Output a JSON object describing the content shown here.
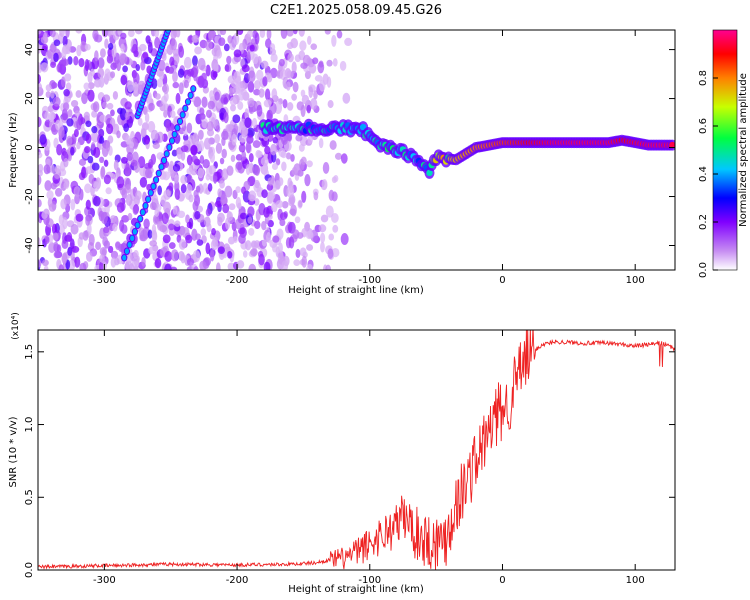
{
  "chart_data": [
    {
      "type": "heatmap",
      "title": "C2E1.2025.058.09.45.G26",
      "xlabel": "Height of straight line (km)",
      "ylabel": "Frequency (Hz)",
      "xlim": [
        -350,
        130
      ],
      "ylim": [
        -50,
        48
      ],
      "xticks": [
        -300,
        -200,
        -100,
        0,
        100
      ],
      "yticks": [
        -40,
        -20,
        0,
        20,
        40
      ],
      "colorbar": {
        "label": "Normalized spectral amplitude",
        "range": [
          0,
          1
        ],
        "ticks": [
          "0.0",
          "0.2",
          "0.4",
          "0.6",
          "0.8"
        ],
        "colormap": [
          "#ffffff",
          "#a020f0",
          "#0000ff",
          "#00ffff",
          "#00ff00",
          "#ffff00",
          "#ff0000",
          "#ff00aa"
        ]
      },
      "features": {
        "main_track": [
          {
            "x": -180,
            "y": 8,
            "amp": 0.5
          },
          {
            "x": -150,
            "y": 8,
            "amp": 0.45
          },
          {
            "x": -120,
            "y": 8,
            "amp": 0.45
          },
          {
            "x": -105,
            "y": 7,
            "amp": 0.45
          },
          {
            "x": -90,
            "y": 1,
            "amp": 0.5
          },
          {
            "x": -75,
            "y": -2,
            "amp": 0.5
          },
          {
            "x": -65,
            "y": -5,
            "amp": 0.45
          },
          {
            "x": -55,
            "y": -10,
            "amp": 0.5
          },
          {
            "x": -50,
            "y": -4,
            "amp": 0.7
          },
          {
            "x": -35,
            "y": -5,
            "amp": 0.75
          },
          {
            "x": -20,
            "y": 0,
            "amp": 0.8
          },
          {
            "x": 0,
            "y": 2,
            "amp": 0.85
          },
          {
            "x": 40,
            "y": 2,
            "amp": 0.95
          },
          {
            "x": 80,
            "y": 2,
            "amp": 0.95
          },
          {
            "x": 90,
            "y": 3,
            "amp": 0.9
          },
          {
            "x": 110,
            "y": 1,
            "amp": 0.95
          },
          {
            "x": 130,
            "y": 1,
            "amp": 0.95
          }
        ],
        "diagonal_tracks": [
          {
            "x0": -285,
            "y0": -45,
            "x1": -233,
            "y1": 24,
            "amp": 0.4
          },
          {
            "x0": -275,
            "y0": 13,
            "x1": -252,
            "y1": 48,
            "amp": 0.4
          }
        ]
      }
    },
    {
      "type": "line",
      "xlabel": "Height of straight line (km)",
      "ylabel": "SNR (10 * v/v)",
      "ylabel_multiplier": "(x10⁴)",
      "xlim": [
        -350,
        130
      ],
      "ylim": [
        0,
        1.65
      ],
      "xticks": [
        -300,
        -200,
        -100,
        0,
        100
      ],
      "yticks": [
        "0.0",
        "0.5",
        "1.0",
        "1.5"
      ],
      "line_color": "#ee2222",
      "series": [
        {
          "x": [
            -350,
            -300,
            -250,
            -200,
            -160,
            -140,
            -130,
            -120,
            -110,
            -100,
            -90,
            -80,
            -75,
            -70,
            -65,
            -60,
            -55,
            -50,
            -45,
            -40,
            -35,
            -30,
            -25,
            -20,
            -15,
            -10,
            -5,
            0,
            5,
            10,
            15,
            20,
            30,
            40,
            60,
            80,
            100,
            110,
            120,
            130
          ],
          "values": [
            0.02,
            0.03,
            0.04,
            0.035,
            0.04,
            0.05,
            0.07,
            0.08,
            0.12,
            0.18,
            0.25,
            0.3,
            0.38,
            0.32,
            0.25,
            0.22,
            0.2,
            0.18,
            0.2,
            0.3,
            0.45,
            0.55,
            0.65,
            0.75,
            0.85,
            0.95,
            1.05,
            1.1,
            1.15,
            1.3,
            1.4,
            1.48,
            1.55,
            1.57,
            1.56,
            1.56,
            1.54,
            1.55,
            1.56,
            1.52
          ]
        }
      ]
    }
  ]
}
